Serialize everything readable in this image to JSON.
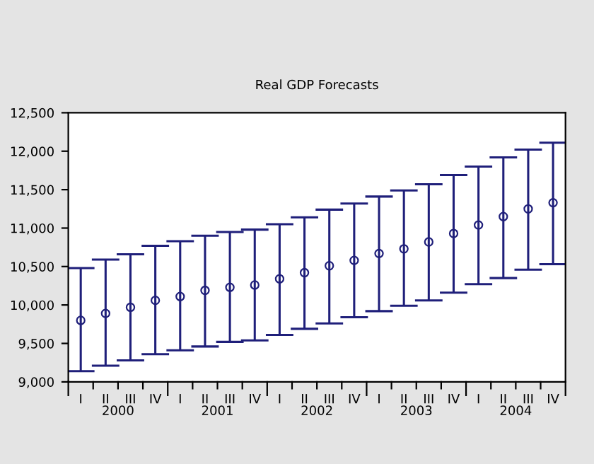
{
  "chart_data": {
    "type": "scatter",
    "title": "Real GDP Forecasts",
    "categories": [
      "I",
      "II",
      "III",
      "IV",
      "I",
      "II",
      "III",
      "IV",
      "I",
      "II",
      "III",
      "IV",
      "I",
      "II",
      "III",
      "IV",
      "I",
      "II",
      "III",
      "IV"
    ],
    "series": [
      {
        "color": "#1f1f7a",
        "values": [
          9800,
          9890,
          9970,
          10060,
          10110,
          10190,
          10230,
          10260,
          10340,
          10420,
          10510,
          10580,
          10670,
          10730,
          10820,
          10930,
          11040,
          11150,
          11250,
          11330
        ],
        "errors": [
          [
            9140,
            10480
          ],
          [
            9210,
            10590
          ],
          [
            9280,
            10660
          ],
          [
            9360,
            10770
          ],
          [
            9410,
            10830
          ],
          [
            9460,
            10900
          ],
          [
            9520,
            10950
          ],
          [
            9540,
            10980
          ],
          [
            9610,
            11050
          ],
          [
            9690,
            11140
          ],
          [
            9760,
            11240
          ],
          [
            9840,
            11320
          ],
          [
            9920,
            11410
          ],
          [
            9990,
            11490
          ],
          [
            10060,
            11570
          ],
          [
            10160,
            11690
          ],
          [
            10270,
            11800
          ],
          [
            10350,
            11920
          ],
          [
            10460,
            12020
          ],
          [
            10530,
            12110
          ]
        ]
      }
    ],
    "annotations": [
      "2000",
      "2001",
      "2002",
      "2003",
      "2004"
    ],
    "ylim": [
      9000,
      12500
    ],
    "yticks": [
      {
        "value": 9000,
        "label": "9,000"
      },
      {
        "value": 9500,
        "label": "9,500"
      },
      {
        "value": 10000,
        "label": "10,000"
      },
      {
        "value": 10500,
        "label": "10,500"
      },
      {
        "value": 11000,
        "label": "11,000"
      },
      {
        "value": 11500,
        "label": "11,500"
      },
      {
        "value": 12000,
        "label": "12,000"
      },
      {
        "value": 12500,
        "label": "12,500"
      }
    ],
    "marker": "circle",
    "grid": false,
    "legend": false
  }
}
